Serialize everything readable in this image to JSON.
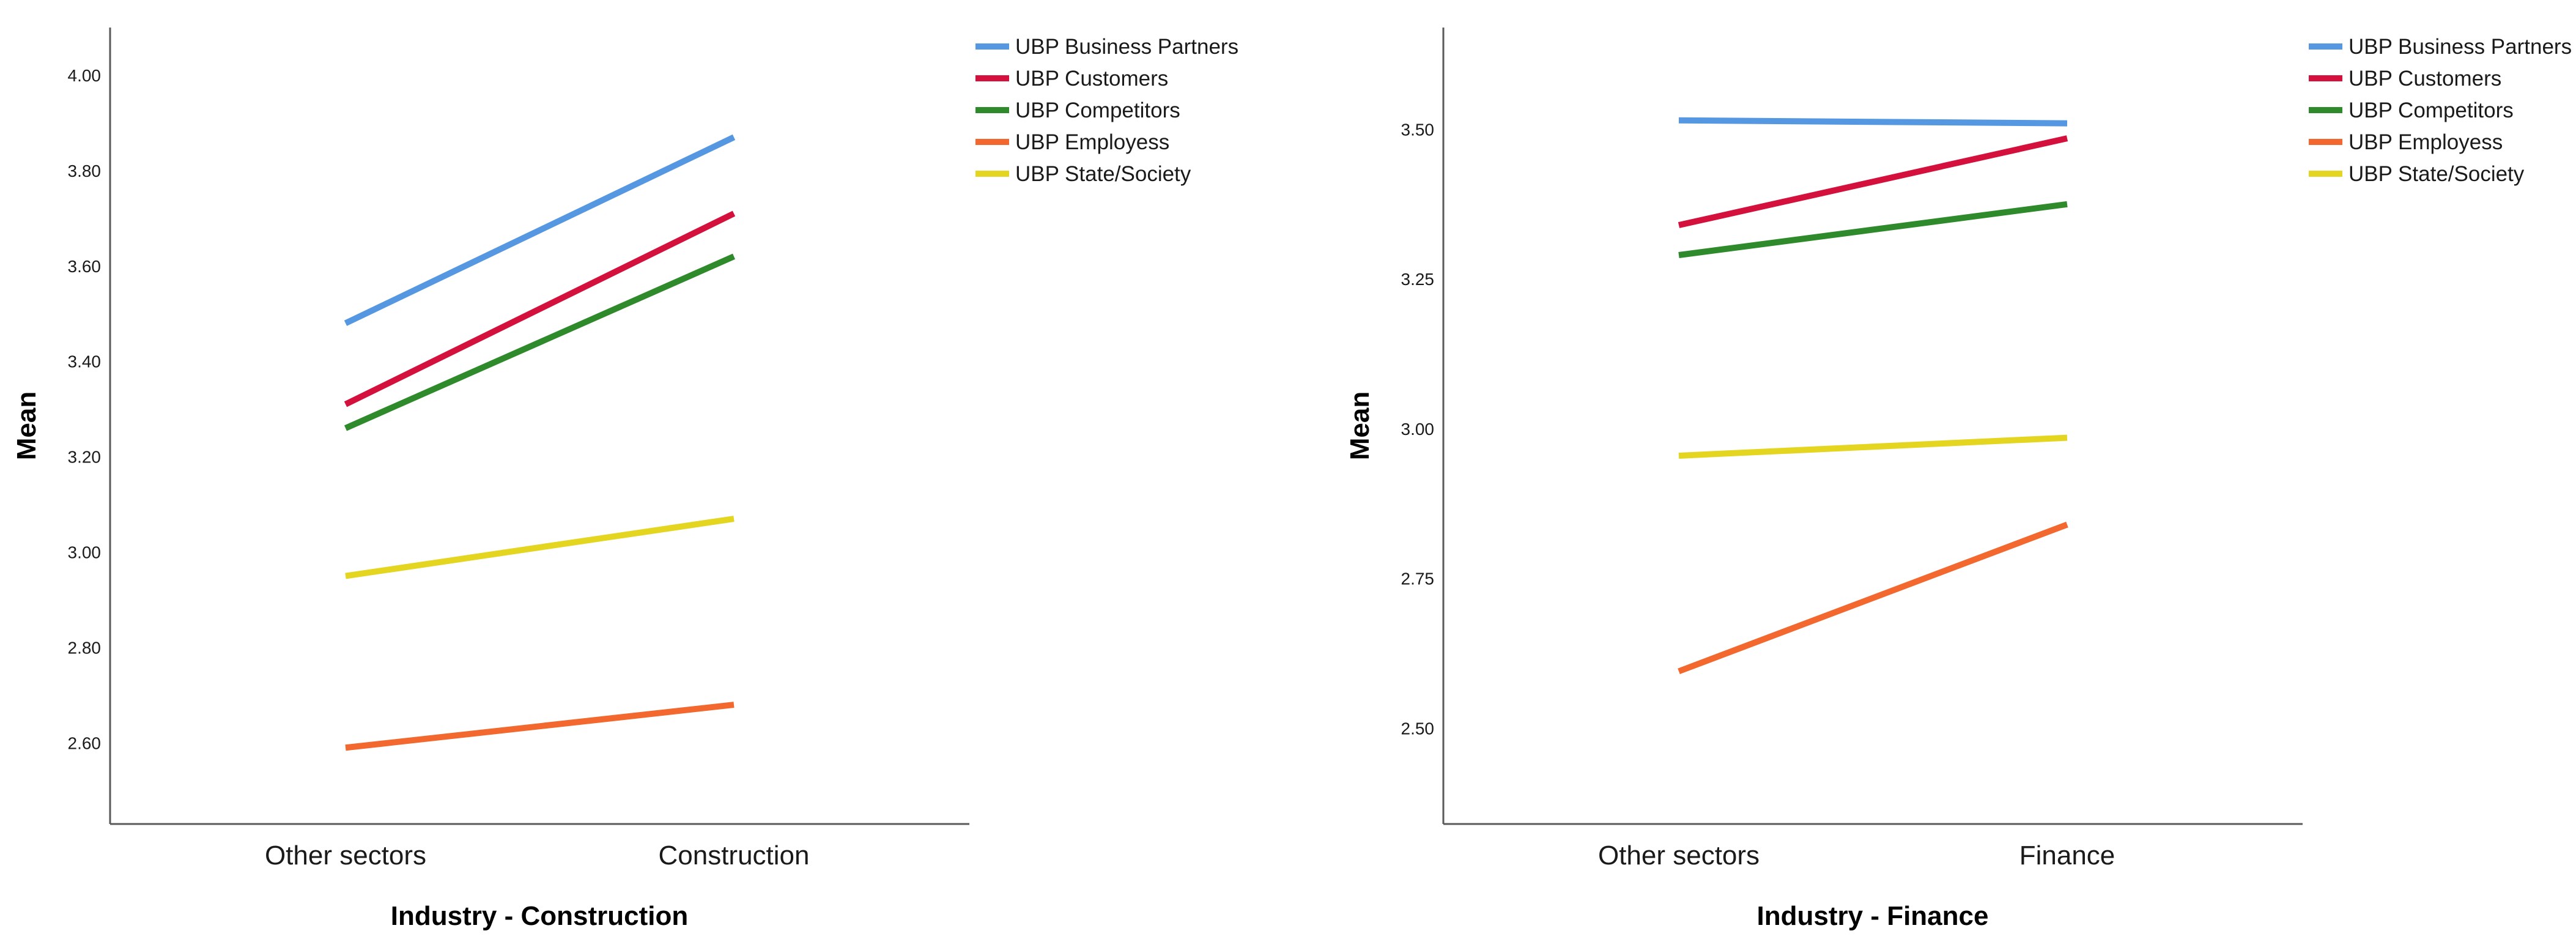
{
  "chart_data": [
    {
      "type": "line",
      "title": "",
      "xlabel": "Industry - Construction",
      "ylabel": "Mean",
      "categories": [
        "Other sectors",
        "Construction"
      ],
      "ylim": [
        2.43,
        4.1
      ],
      "yticks": [
        2.6,
        2.8,
        3.0,
        3.2,
        3.4,
        3.6,
        3.8,
        4.0
      ],
      "ytick_labels": [
        "2.60",
        "2.80",
        "3.00",
        "3.20",
        "3.40",
        "3.60",
        "3.80",
        "4.00"
      ],
      "grid": false,
      "legend_position": "top-right",
      "series": [
        {
          "name": "UBP Business Partners",
          "color": "#5597e0",
          "values": [
            3.48,
            3.87
          ]
        },
        {
          "name": "UBP Customers",
          "color": "#d4103c",
          "values": [
            3.31,
            3.71
          ]
        },
        {
          "name": "UBP Competitors",
          "color": "#2e8a2a",
          "values": [
            3.26,
            3.62
          ]
        },
        {
          "name": "UBP Employess",
          "color": "#f2682f",
          "values": [
            2.59,
            2.68
          ]
        },
        {
          "name": "UBP State/Society",
          "color": "#e4d620",
          "values": [
            2.95,
            3.07
          ]
        }
      ]
    },
    {
      "type": "line",
      "title": "",
      "xlabel": "Industry - Finance",
      "ylabel": "Mean",
      "categories": [
        "Other sectors",
        "Finance"
      ],
      "ylim": [
        2.34,
        3.67
      ],
      "yticks": [
        2.5,
        2.75,
        3.0,
        3.25,
        3.5
      ],
      "ytick_labels": [
        "2.50",
        "2.75",
        "3.00",
        "3.25",
        "3.50"
      ],
      "grid": false,
      "legend_position": "top-right",
      "series": [
        {
          "name": "UBP Business Partners",
          "color": "#5597e0",
          "values": [
            3.515,
            3.51
          ]
        },
        {
          "name": "UBP Customers",
          "color": "#d4103c",
          "values": [
            3.34,
            3.485
          ]
        },
        {
          "name": "UBP Competitors",
          "color": "#2e8a2a",
          "values": [
            3.29,
            3.375
          ]
        },
        {
          "name": "UBP Employess",
          "color": "#f2682f",
          "values": [
            2.595,
            2.84
          ]
        },
        {
          "name": "UBP State/Society",
          "color": "#e4d620",
          "values": [
            2.955,
            2.985
          ]
        }
      ]
    }
  ]
}
